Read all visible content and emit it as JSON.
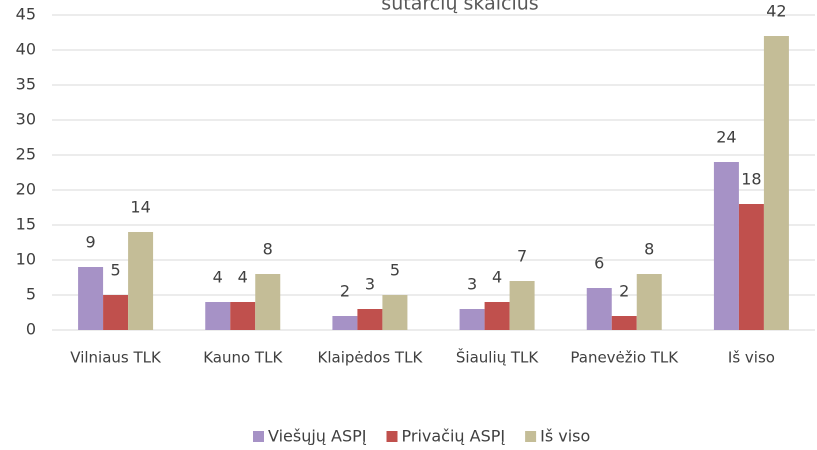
{
  "chart_data": {
    "type": "bar",
    "title": "sutarčių skaičius",
    "categories": [
      "Vilniaus TLK",
      "Kauno TLK",
      "Klaipėdos TLK",
      "Šiaulių TLK",
      "Panevėžio TLK",
      "Iš viso"
    ],
    "series": [
      {
        "name": "Viešųjų ASPĮ",
        "color": "#a692c6",
        "values": [
          9,
          4,
          2,
          3,
          6,
          24
        ]
      },
      {
        "name": "Privačių ASPĮ",
        "color": "#c0504d",
        "values": [
          5,
          4,
          3,
          4,
          2,
          18
        ]
      },
      {
        "name": "Iš viso",
        "color": "#c4bd97",
        "values": [
          14,
          8,
          5,
          7,
          8,
          42
        ]
      }
    ],
    "ylim": [
      0,
      45
    ],
    "yticks": [
      0,
      5,
      10,
      15,
      20,
      25,
      30,
      35,
      40,
      45
    ],
    "grid": true,
    "legend": "bottom"
  }
}
